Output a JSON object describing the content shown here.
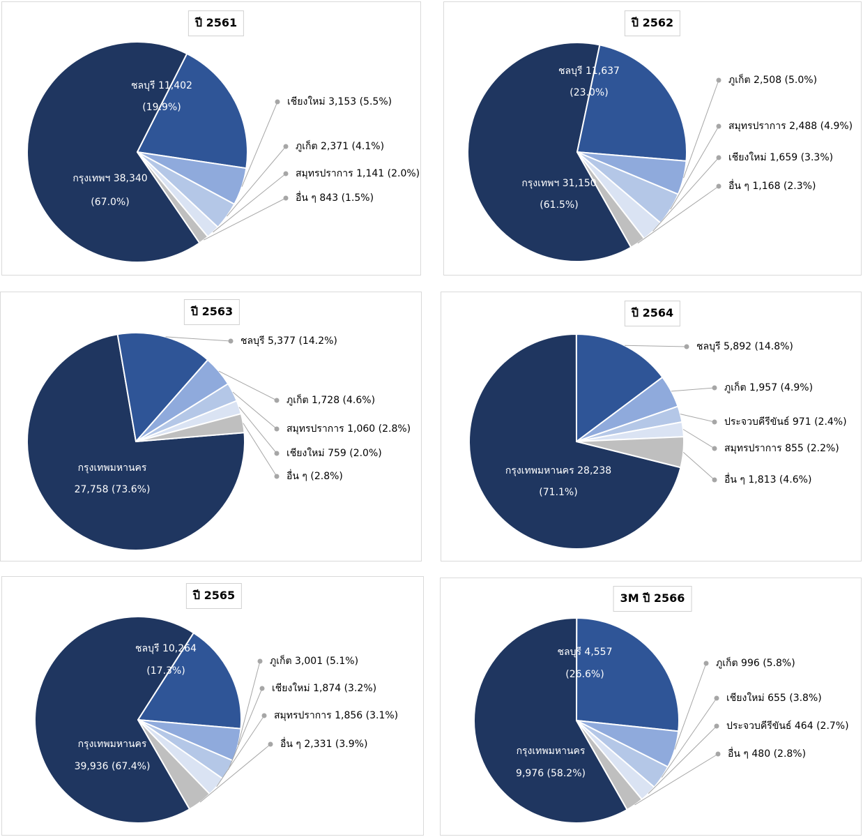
{
  "colors": {
    "main": "#1f3660",
    "second": "#2f5597",
    "third": "#8faadc",
    "fourth": "#b4c7e7",
    "fifth": "#dae3f3",
    "other": "#bfbfbf",
    "leader": "#a6a6a6"
  },
  "chart_data": [
    {
      "type": "pie",
      "title": "ปี 2561",
      "slices": [
        {
          "name": "กรุงเทพฯ",
          "value": 38340,
          "percent": 67.0,
          "label1": "กรุงเทพฯ 38,340",
          "label2": "(67.0%)"
        },
        {
          "name": "ชลบุรี",
          "value": 11402,
          "percent": 19.9,
          "label1": "ชลบุรี 11,402",
          "label2": "(19.9%)"
        },
        {
          "name": "เชียงใหม่",
          "value": 3153,
          "percent": 5.5,
          "label1": "เชียงใหม่ 3,153 (5.5%)"
        },
        {
          "name": "ภูเก็ต",
          "value": 2371,
          "percent": 4.1,
          "label1": "ภูเก็ต 2,371 (4.1%)"
        },
        {
          "name": "สมุทรปราการ",
          "value": 1141,
          "percent": 2.0,
          "label1": "สมุทรปราการ 1,141 (2.0%)"
        },
        {
          "name": "อื่น ๆ",
          "value": 843,
          "percent": 1.5,
          "label1": "อื่น ๆ 843 (1.5%)"
        }
      ]
    },
    {
      "type": "pie",
      "title": "ปี 2562",
      "slices": [
        {
          "name": "กรุงเทพฯ",
          "value": 31150,
          "percent": 61.5,
          "label1": "กรุงเทพฯ 31,150",
          "label2": "(61.5%)"
        },
        {
          "name": "ชลบุรี",
          "value": 11637,
          "percent": 23.0,
          "label1": "ชลบุรี 11,637",
          "label2": "(23.0%)"
        },
        {
          "name": "ภูเก็ต",
          "value": 2508,
          "percent": 5.0,
          "label1": "ภูเก็ต 2,508 (5.0%)"
        },
        {
          "name": "สมุทรปราการ",
          "value": 2488,
          "percent": 4.9,
          "label1": "สมุทรปราการ 2,488 (4.9%)"
        },
        {
          "name": "เชียงใหม่",
          "value": 1659,
          "percent": 3.3,
          "label1": "เชียงใหม่ 1,659 (3.3%)"
        },
        {
          "name": "อื่น ๆ",
          "value": 1168,
          "percent": 2.3,
          "label1": "อื่น ๆ 1,168 (2.3%)"
        }
      ]
    },
    {
      "type": "pie",
      "title": "ปี 2563",
      "slices": [
        {
          "name": "กรุงเทพมหานคร",
          "value": 27758,
          "percent": 73.6,
          "label1": "กรุงเทพมหานคร",
          "label2": "27,758 (73.6%)"
        },
        {
          "name": "ชลบุรี",
          "value": 5377,
          "percent": 14.2,
          "label1": "ชลบุรี 5,377 (14.2%)"
        },
        {
          "name": "ภูเก็ต",
          "value": 1728,
          "percent": 4.6,
          "label1": "ภูเก็ต 1,728 (4.6%)"
        },
        {
          "name": "สมุทรปราการ",
          "value": 1060,
          "percent": 2.8,
          "label1": "สมุทรปราการ 1,060 (2.8%)"
        },
        {
          "name": "เชียงใหม่",
          "value": 759,
          "percent": 2.0,
          "label1": "เชียงใหม่ 759 (2.0%)"
        },
        {
          "name": "อื่น ๆ",
          "value": null,
          "percent": 2.8,
          "label1": "อื่น ๆ (2.8%)"
        }
      ]
    },
    {
      "type": "pie",
      "title": "ปี 2564",
      "slices": [
        {
          "name": "กรุงเทพมหานคร",
          "value": 28238,
          "percent": 71.1,
          "label1": "กรุงเทพมหานคร 28,238",
          "label2": "(71.1%)"
        },
        {
          "name": "ชลบุรี",
          "value": 5892,
          "percent": 14.8,
          "label1": "ชลบุรี 5,892 (14.8%)"
        },
        {
          "name": "ภูเก็ต",
          "value": 1957,
          "percent": 4.9,
          "label1": "ภูเก็ต 1,957 (4.9%)"
        },
        {
          "name": "ประจวบคีรีขันธ์",
          "value": 971,
          "percent": 2.4,
          "label1": "ประจวบคีรีขันธ์ 971 (2.4%)"
        },
        {
          "name": "สมุทรปราการ",
          "value": 855,
          "percent": 2.2,
          "label1": "สมุทรปราการ 855 (2.2%)"
        },
        {
          "name": "อื่น ๆ",
          "value": 1813,
          "percent": 4.6,
          "label1": "อื่น ๆ 1,813 (4.6%)"
        }
      ]
    },
    {
      "type": "pie",
      "title": "ปี 2565",
      "slices": [
        {
          "name": "กรุงเทพมหานคร",
          "value": 39936,
          "percent": 67.4,
          "label1": "กรุงเทพมหานคร",
          "label2": "39,936  (67.4%)"
        },
        {
          "name": "ชลบุรี",
          "value": 10264,
          "percent": 17.3,
          "label1": "ชลบุรี  10,264",
          "label2": "(17.3%)"
        },
        {
          "name": "ภูเก็ต",
          "value": 3001,
          "percent": 5.1,
          "label1": "ภูเก็ต  3,001  (5.1%)"
        },
        {
          "name": "เชียงใหม่",
          "value": 1874,
          "percent": 3.2,
          "label1": "เชียงใหม่  1,874  (3.2%)"
        },
        {
          "name": "สมุทรปราการ",
          "value": 1856,
          "percent": 3.1,
          "label1": "สมุทรปราการ  1,856  (3.1%)"
        },
        {
          "name": "อื่น ๆ",
          "value": 2331,
          "percent": 3.9,
          "label1": "อื่น ๆ 2,331 (3.9%)"
        }
      ]
    },
    {
      "type": "pie",
      "title": "3M ปี 2566",
      "slices": [
        {
          "name": "กรุงเทพมหานคร",
          "value": 9976,
          "percent": 58.2,
          "label1": "กรุงเทพมหานคร",
          "label2": "9,976  (58.2%)"
        },
        {
          "name": "ชลบุรี",
          "value": 4557,
          "percent": 26.6,
          "label1": "ชลบุรี  4,557",
          "label2": "(26.6%)"
        },
        {
          "name": "ภูเก็ต",
          "value": 996,
          "percent": 5.8,
          "label1": "ภูเก็ต  996  (5.8%)"
        },
        {
          "name": "เชียงใหม่",
          "value": 655,
          "percent": 3.8,
          "label1": "เชียงใหม่  655  (3.8%)"
        },
        {
          "name": "ประจวบคีรีขันธ์",
          "value": 464,
          "percent": 2.7,
          "label1": "ประจวบคีรีขันธ์  464  (2.7%)"
        },
        {
          "name": "อื่น ๆ",
          "value": 480,
          "percent": 2.8,
          "label1": "อื่น ๆ 480 (2.8%)"
        }
      ]
    }
  ]
}
